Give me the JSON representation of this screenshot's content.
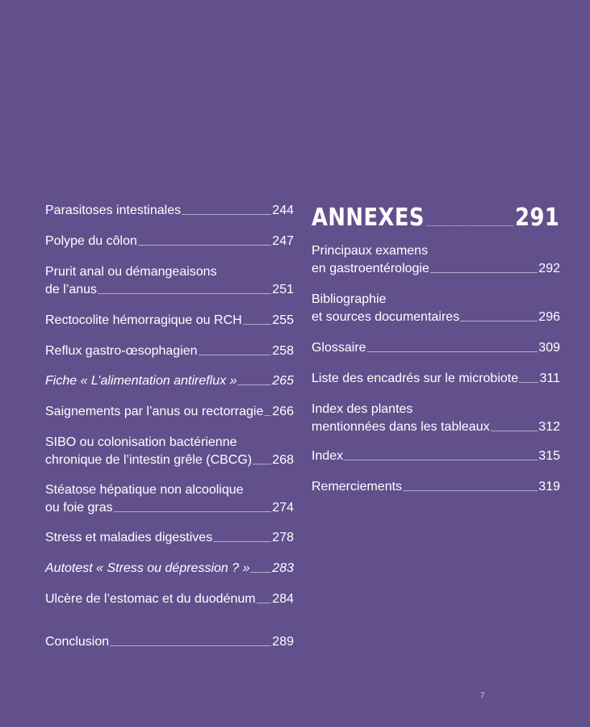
{
  "left_entries": [
    {
      "lines": [
        "Parasitoses intestinales"
      ],
      "page": "244",
      "italic": false
    },
    {
      "lines": [
        "Polype du côlon"
      ],
      "page": "247",
      "italic": false
    },
    {
      "lines": [
        "Prurit anal ou démangeaisons",
        "de l’anus"
      ],
      "page": "251",
      "italic": false
    },
    {
      "lines": [
        "Rectocolite hémorragique ou RCH"
      ],
      "page": "255",
      "italic": false
    },
    {
      "lines": [
        "Reflux gastro-œsophagien"
      ],
      "page": "258",
      "italic": false
    },
    {
      "lines": [
        "Fiche « L’alimentation antireflux »"
      ],
      "page": "265",
      "italic": true
    },
    {
      "lines": [
        "Saignements par l’anus ou rectorragie"
      ],
      "page": "266",
      "italic": false
    },
    {
      "lines": [
        "SIBO ou colonisation bactérienne",
        "chronique de l’intestin grêle (CBCG)"
      ],
      "page": "268",
      "italic": false
    },
    {
      "lines": [
        "Stéatose hépatique non alcoolique",
        "ou foie gras"
      ],
      "page": "274",
      "italic": false
    },
    {
      "lines": [
        "Stress et maladies digestives"
      ],
      "page": "278",
      "italic": false
    },
    {
      "lines": [
        "Autotest « Stress ou dépression ? »"
      ],
      "page": "283",
      "italic": true
    },
    {
      "lines": [
        "Ulcère de l’estomac et du duodénum"
      ],
      "page": "284",
      "italic": false
    },
    {
      "lines": [
        "Conclusion"
      ],
      "page": "289",
      "italic": false
    }
  ],
  "annexes": {
    "title": "ANNEXES",
    "page": "291",
    "entries": [
      {
        "lines": [
          "Principaux examens",
          "en gastroentérologie"
        ],
        "page": "292"
      },
      {
        "lines": [
          "Bibliographie",
          "et sources documentaires"
        ],
        "page": "296"
      },
      {
        "lines": [
          "Glossaire"
        ],
        "page": "309"
      },
      {
        "lines": [
          "Liste des encadrés sur le microbiote"
        ],
        "page": "311"
      },
      {
        "lines": [
          "Index des plantes",
          "mentionnées dans les tableaux"
        ],
        "page": "312"
      },
      {
        "lines": [
          "Index"
        ],
        "page": "315"
      },
      {
        "lines": [
          "Remerciements"
        ],
        "page": "319"
      }
    ]
  },
  "folio": "7"
}
